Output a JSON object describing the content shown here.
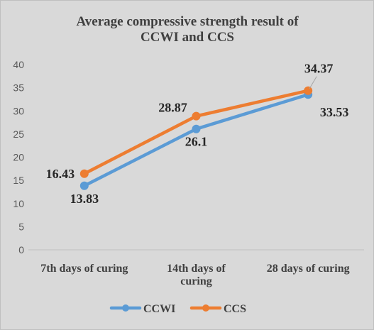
{
  "chart_data": {
    "type": "line",
    "title_lines": [
      "Average compressive strength result  of",
      "CCWI and CCS"
    ],
    "categories": [
      [
        "7th days of curing"
      ],
      [
        "14th days of",
        "curing"
      ],
      [
        "28 days of curing"
      ]
    ],
    "ylim": [
      0,
      40
    ],
    "yticks": [
      0,
      5,
      10,
      15,
      20,
      25,
      30,
      35,
      40
    ],
    "grid": false,
    "legend_position": "bottom",
    "series": [
      {
        "name": "CCWI",
        "color": "#5b9bd5",
        "values": [
          13.83,
          26.1,
          33.53
        ],
        "labels": [
          "13.83",
          "26.1",
          "33.53"
        ]
      },
      {
        "name": "CCS",
        "color": "#ed7d31",
        "values": [
          16.43,
          28.87,
          34.37
        ],
        "labels": [
          "16.43",
          "28.87",
          "34.37"
        ]
      }
    ]
  }
}
